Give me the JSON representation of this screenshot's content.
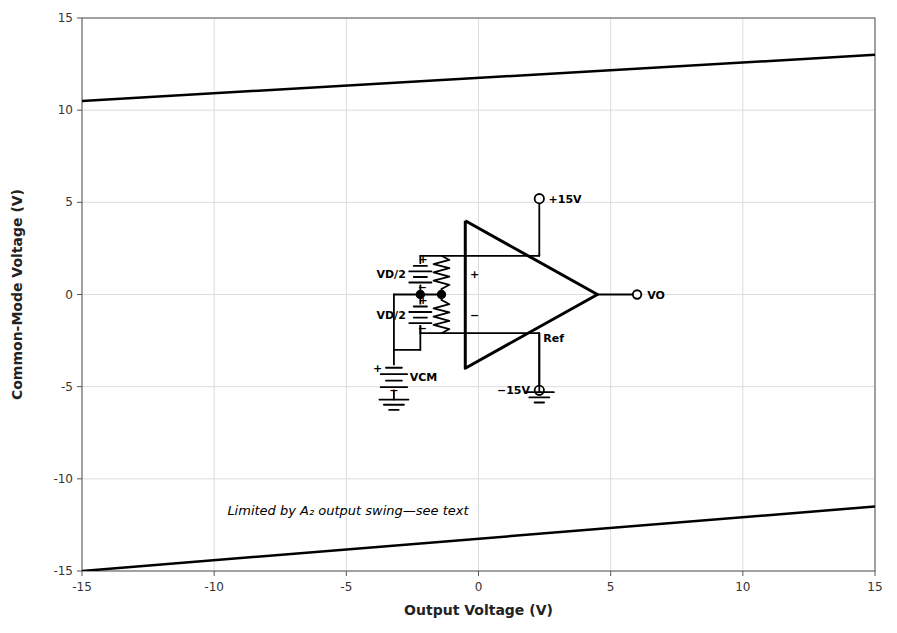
{
  "chart_data": {
    "type": "line",
    "x_label": "Output Voltage (V)",
    "y_label": "Common-Mode Voltage (V)",
    "x": [
      -15,
      15
    ],
    "series": [
      {
        "color": "#000000",
        "values": [
          10.5,
          13.0
        ]
      },
      {
        "color": "#000000",
        "values": [
          -15.0,
          -11.5
        ]
      }
    ],
    "xlim": [
      -15,
      15
    ],
    "ylim": [
      -15,
      15
    ],
    "xticks": [
      -15,
      -10,
      -5,
      0,
      5,
      10,
      15
    ],
    "yticks": [
      -15,
      -10,
      -5,
      0,
      5,
      10,
      15
    ],
    "grid": true,
    "annotations": [
      {
        "text": "Limited by A₂ output swing—see text",
        "x": -9.5,
        "y": -11.2
      },
      {
        "text": "+",
        "x": -0.15,
        "y": 1.1
      },
      {
        "text": "−",
        "x": -0.15,
        "y": -1.1
      },
      {
        "text": "+15V",
        "x": 2.65,
        "y": 5.2
      },
      {
        "text": "−15V",
        "x": 1.95,
        "y": -5.2
      },
      {
        "text": "VO",
        "x": 6.38,
        "y": 0
      },
      {
        "text": "Ref",
        "x": 2.45,
        "y": -2.35
      },
      {
        "text": "+",
        "x": -2.1,
        "y": 1.9
      },
      {
        "text": "−",
        "x": -2.12,
        "y": 0.38
      },
      {
        "text": "VD/2",
        "x": -2.75,
        "y": 1.1
      },
      {
        "text": "+",
        "x": -2.1,
        "y": -0.3
      },
      {
        "text": "−",
        "x": -2.12,
        "y": -1.82
      },
      {
        "text": "VD/2",
        "x": -2.75,
        "y": -1.1
      },
      {
        "text": "+",
        "x": -3.82,
        "y": -4.0
      },
      {
        "text": "−",
        "x": -3.2,
        "y": -5.2
      },
      {
        "text": "VCM",
        "x": -2.6,
        "y": -4.5
      }
    ]
  }
}
